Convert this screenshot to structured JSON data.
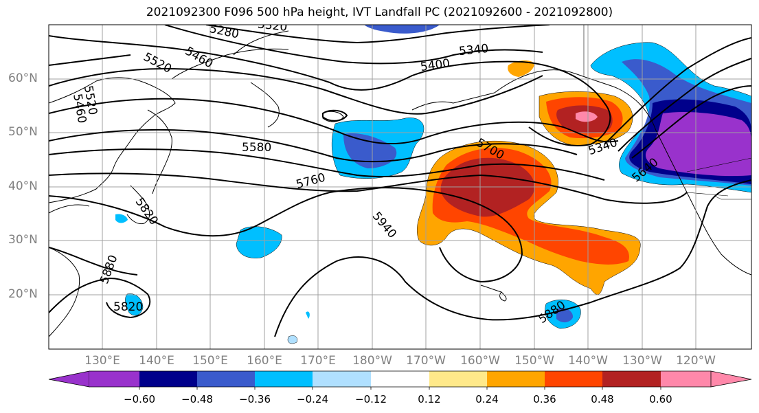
{
  "title": "2021092300 F096 500 hPa height, IVT Landfall PC (2021092600 - 2021092800)",
  "latitude_labels": [
    "60°N",
    "50°N",
    "40°N",
    "30°N",
    "20°N"
  ],
  "longitude_labels": [
    "130°E",
    "140°E",
    "150°E",
    "160°E",
    "170°E",
    "180°W",
    "170°W",
    "160°W",
    "150°W",
    "140°W",
    "130°W",
    "120°W"
  ],
  "contour_labels": [
    "5280",
    "5320",
    "5340",
    "5400",
    "5460",
    "5520",
    "5520",
    "5460",
    "5580",
    "5760",
    "5700",
    "5340",
    "5640",
    "5820",
    "5940",
    "5880",
    "5880",
    "5820"
  ],
  "colorbar": {
    "ticks": [
      "−0.60",
      "−0.48",
      "−0.36",
      "−0.24",
      "−0.12",
      "0.12",
      "0.24",
      "0.36",
      "0.48",
      "0.60"
    ],
    "colors": [
      "#9932cc",
      "#00008b",
      "#3a5bcc",
      "#00bfff",
      "#b0e0ff",
      "#ffffff",
      "#ffe98a",
      "#ffa500",
      "#ff4500",
      "#b22222",
      "#ff88aa"
    ]
  }
}
